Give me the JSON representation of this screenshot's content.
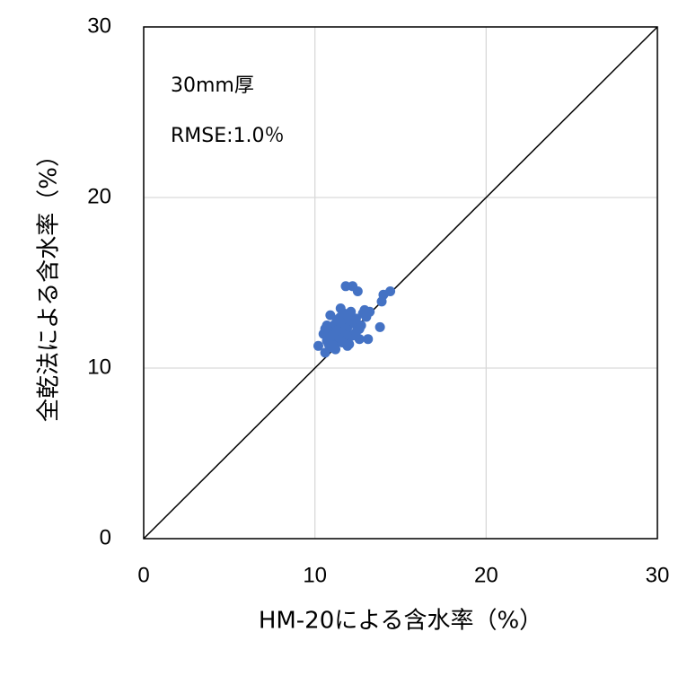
{
  "chart_data": {
    "type": "scatter",
    "annotations": [
      "30mm厚",
      "RMSE:1.0％"
    ],
    "x_label": "HM-20による含水率（%）",
    "y_label": "全乾法による含水率（%）",
    "xlim": [
      0,
      30
    ],
    "ylim": [
      0,
      30
    ],
    "xticks": [
      0,
      10,
      20,
      30
    ],
    "yticks": [
      0,
      10,
      20,
      30
    ],
    "grid": true,
    "color": "#4472c4",
    "x": [
      11.8,
      12.2,
      12.5,
      14.4,
      14.0,
      13.9,
      13.8,
      13.1,
      12.6,
      11.5,
      12.9,
      10.9,
      10.2,
      10.6,
      10.5,
      10.7,
      10.8,
      11.0,
      11.1,
      11.2,
      11.3,
      11.4,
      11.6,
      11.7,
      11.9,
      12.0,
      12.1,
      12.3,
      12.4,
      10.6,
      10.8,
      11.0,
      11.2,
      11.4,
      11.6,
      11.8,
      12.0,
      12.2,
      10.9,
      11.1,
      11.3,
      11.5,
      11.7,
      11.9,
      12.1,
      12.6,
      12.8,
      13.0,
      13.2,
      11.0,
      11.3,
      11.6,
      11.9,
      10.7,
      11.2,
      12.4,
      12.7,
      11.5
    ],
    "y": [
      14.8,
      14.8,
      14.5,
      14.5,
      14.3,
      13.9,
      12.4,
      11.7,
      11.7,
      13.5,
      13.4,
      13.1,
      11.3,
      10.9,
      12.0,
      11.6,
      11.4,
      11.2,
      12.5,
      11.9,
      11.5,
      11.8,
      12.2,
      12.7,
      12.4,
      12.0,
      12.8,
      12.6,
      12.9,
      12.3,
      12.1,
      12.4,
      12.6,
      12.9,
      12.0,
      11.6,
      11.4,
      11.9,
      11.7,
      11.3,
      12.8,
      13.0,
      13.2,
      13.1,
      13.3,
      12.3,
      13.2,
      13.0,
      13.3,
      11.9,
      12.2,
      11.5,
      11.3,
      12.5,
      11.1,
      12.1,
      12.5,
      12.7
    ]
  }
}
